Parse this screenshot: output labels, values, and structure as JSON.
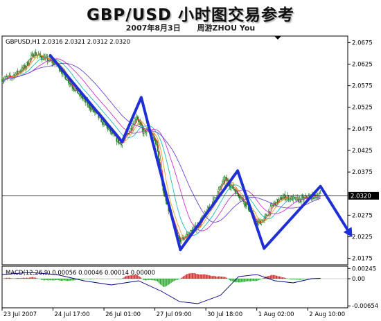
{
  "header": {
    "title": "GBP/USD 小时图交易参考",
    "date": "2007年8月3日",
    "author": "周游ZHOU You"
  },
  "chart_data": [
    {
      "type": "line",
      "info_label": "GBPUSD,H1  2.0316 2.0321 2.0312 2.0320",
      "y_ticks": [
        "2.0675",
        "2.0625",
        "2.0575",
        "2.0525",
        "2.0475",
        "2.0425",
        "2.0375",
        "2.0275",
        "2.0225",
        "2.0175"
      ],
      "y_tick_values": [
        2.0675,
        2.0625,
        2.0575,
        2.0525,
        2.0475,
        2.0425,
        2.0375,
        2.0275,
        2.0225,
        2.0175
      ],
      "ylim": [
        2.016,
        2.069
      ],
      "current_price": 2.032,
      "current_price_label": "2.0320",
      "x_ticks": [
        "23 Jul 2007",
        "24 Jul 17:00",
        "26 Jul 01:00",
        "27 Jul 09:00",
        "30 Jul 18:00",
        "1 Aug 02:00",
        "2 Aug 10:00"
      ],
      "x_tick_positions": [
        0,
        56,
        112,
        168,
        224,
        280,
        336
      ],
      "bars": 380,
      "price_path": [
        [
          0,
          2.059
        ],
        [
          10,
          2.0595
        ],
        [
          25,
          2.0618
        ],
        [
          35,
          2.065
        ],
        [
          45,
          2.064
        ],
        [
          60,
          2.0625
        ],
        [
          75,
          2.058
        ],
        [
          95,
          2.053
        ],
        [
          115,
          2.048
        ],
        [
          130,
          2.044
        ],
        [
          140,
          2.047
        ],
        [
          148,
          2.0505
        ],
        [
          155,
          2.0468
        ],
        [
          162,
          2.047
        ],
        [
          170,
          2.044
        ],
        [
          178,
          2.032
        ],
        [
          188,
          2.0255
        ],
        [
          195,
          2.0215
        ],
        [
          205,
          2.0232
        ],
        [
          215,
          2.025
        ],
        [
          230,
          2.03
        ],
        [
          245,
          2.036
        ],
        [
          255,
          2.0335
        ],
        [
          262,
          2.0318
        ],
        [
          270,
          2.0295
        ],
        [
          280,
          2.0255
        ],
        [
          288,
          2.0265
        ],
        [
          298,
          2.03
        ],
        [
          310,
          2.0318
        ],
        [
          325,
          2.031
        ],
        [
          340,
          2.0318
        ],
        [
          350,
          2.0322
        ]
      ],
      "trend_path": [
        [
          53,
          2.0645
        ],
        [
          132,
          2.0445
        ],
        [
          153,
          2.0548
        ],
        [
          196,
          2.0195
        ],
        [
          259,
          2.0378
        ],
        [
          288,
          2.0198
        ],
        [
          350,
          2.0342
        ],
        [
          385,
          2.0224
        ]
      ]
    },
    {
      "type": "bar",
      "label": "MACD(12,26,9) 0.00056 0.00046 0.00014 0.00000",
      "y_ticks": [
        "0.00245",
        "0.00",
        "-0.00654"
      ],
      "y_tick_values": [
        0.00245,
        0.0,
        -0.00654
      ],
      "ylim": [
        -0.007,
        0.003
      ],
      "signal_path": [
        [
          0,
          0.001
        ],
        [
          30,
          0.0015
        ],
        [
          60,
          0.001
        ],
        [
          90,
          -0.0005
        ],
        [
          120,
          -0.0015
        ],
        [
          150,
          -0.0005
        ],
        [
          175,
          -0.003
        ],
        [
          195,
          -0.0055
        ],
        [
          215,
          -0.006
        ],
        [
          240,
          -0.004
        ],
        [
          260,
          0.0005
        ],
        [
          280,
          0.001
        ],
        [
          300,
          -0.0005
        ],
        [
          320,
          -0.001
        ],
        [
          340,
          0.0
        ],
        [
          350,
          0.0001
        ]
      ]
    }
  ]
}
